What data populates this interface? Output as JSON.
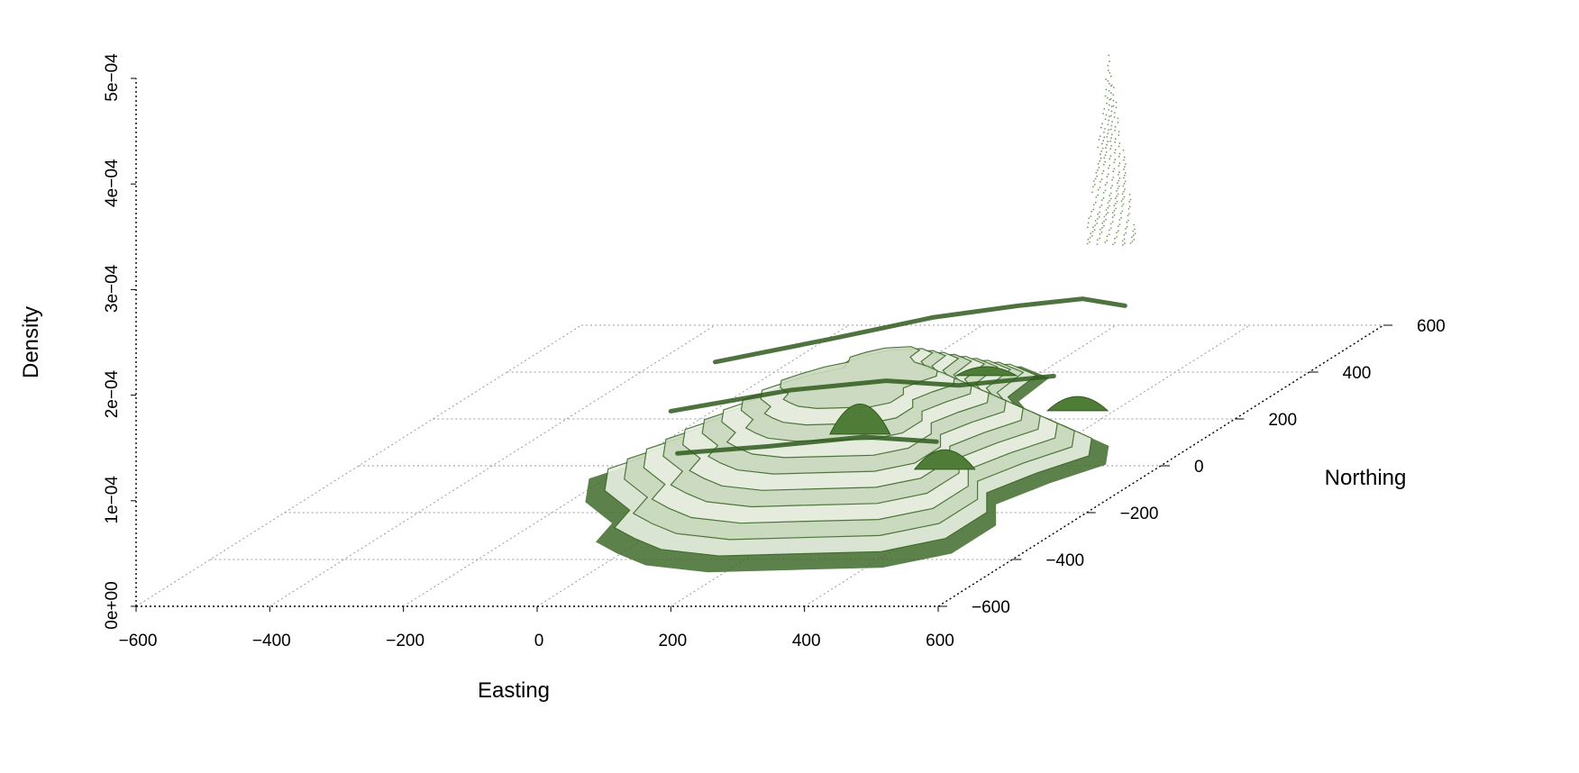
{
  "chart_data": {
    "type": "surface3d",
    "title": "",
    "xlabel": "Easting",
    "ylabel": "Northing",
    "zlabel": "Density",
    "xlim": [
      -600,
      600
    ],
    "ylim": [
      -600,
      600
    ],
    "zlim": [
      0,
      0.0005
    ],
    "x_ticks": [
      "−600",
      "−400",
      "−200",
      "0",
      "200",
      "400",
      "600"
    ],
    "x_tick_values": [
      -600,
      -400,
      -200,
      0,
      200,
      400,
      600
    ],
    "y_ticks": [
      "−600",
      "−400",
      "−200",
      "0",
      "200",
      "400",
      "600"
    ],
    "y_tick_values": [
      -600,
      -400,
      -200,
      0,
      200,
      400,
      600
    ],
    "z_ticks": [
      "0e+00",
      "1e−04",
      "2e−04",
      "3e−04",
      "4e−04",
      "5e−04"
    ],
    "z_tick_values": [
      0,
      0.0001,
      0.0002,
      0.0003,
      0.0004,
      0.0005
    ],
    "grid": true,
    "surface_color": "#3f6b2a",
    "surface_highlight": "#e8efe2",
    "peak": {
      "easting": 300,
      "northing": 400,
      "density": 0.0003
    },
    "bumps": [
      {
        "easting": 150,
        "northing": 0,
        "density": 8e-05
      },
      {
        "easting": 360,
        "northing": -150,
        "density": 6e-05
      },
      {
        "easting": 420,
        "northing": 100,
        "density": 5e-05
      },
      {
        "easting": 200,
        "northing": 250,
        "density": 4e-05
      }
    ]
  }
}
